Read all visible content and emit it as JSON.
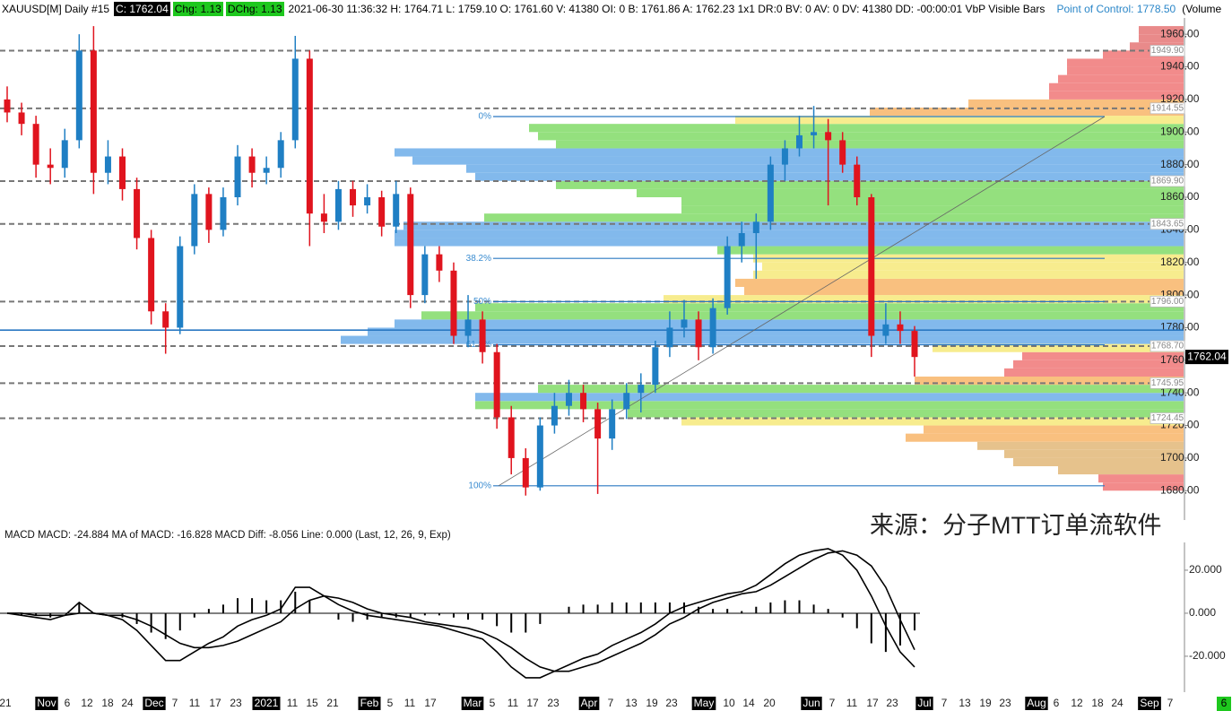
{
  "header": {
    "symbol": "XAUUSD[M]  Daily  #15",
    "close": "C: 1762.04",
    "chg": "Chg: 1.13",
    "dchg": "DChg: 1.13",
    "info": "2021-06-30 11:36:32 H: 1764.71 L: 1759.10 O: 1761.60 V: 41380 OI: 0 B: 1761.86 A: 1762.23 1x1 DR:0 BV: 0 AV: 0 DV: 41380 DD: -00:00:01 VbP Visible Bars",
    "poc": "Point of Control: 1778.50",
    "volume": "(Volume"
  },
  "watermark": "来源：分子MTT订单流软件",
  "corner_badge": "6",
  "chart_data": [
    {
      "type": "candlestick",
      "up_color": "#1f7fc4",
      "down_color": "#e0141e",
      "ylim": [
        1662,
        1970
      ],
      "yticks": [
        {
          "value": 1680,
          "label": "1680.00"
        },
        {
          "value": 1700,
          "label": "1700.00"
        },
        {
          "value": 1720,
          "label": "1720.00"
        },
        {
          "value": 1740,
          "label": "1740.00"
        },
        {
          "value": 1760,
          "label": "1760.00"
        },
        {
          "value": 1780,
          "label": "1780.00"
        },
        {
          "value": 1800,
          "label": "1800.00"
        },
        {
          "value": 1820,
          "label": "1820.00"
        },
        {
          "value": 1840,
          "label": "1840.00"
        },
        {
          "value": 1860,
          "label": "1860.00"
        },
        {
          "value": 1880,
          "label": "1880.00"
        },
        {
          "value": 1900,
          "label": "1900.00"
        },
        {
          "value": 1920,
          "label": "1920.00"
        },
        {
          "value": 1940,
          "label": "1940.00"
        },
        {
          "value": 1960,
          "label": "1960.00"
        }
      ],
      "candles": [
        [
          1920,
          1928,
          1906,
          1912
        ],
        [
          1912,
          1918,
          1898,
          1905
        ],
        [
          1905,
          1910,
          1872,
          1880
        ],
        [
          1880,
          1890,
          1868,
          1878
        ],
        [
          1878,
          1902,
          1872,
          1895
        ],
        [
          1895,
          1960,
          1890,
          1950
        ],
        [
          1950,
          1965,
          1862,
          1875
        ],
        [
          1875,
          1895,
          1868,
          1885
        ],
        [
          1885,
          1890,
          1858,
          1865
        ],
        [
          1865,
          1872,
          1828,
          1835
        ],
        [
          1835,
          1840,
          1782,
          1790
        ],
        [
          1790,
          1795,
          1764,
          1780
        ],
        [
          1780,
          1836,
          1776,
          1830
        ],
        [
          1830,
          1868,
          1825,
          1862
        ],
        [
          1862,
          1866,
          1832,
          1840
        ],
        [
          1840,
          1866,
          1836,
          1860
        ],
        [
          1860,
          1892,
          1855,
          1885
        ],
        [
          1885,
          1890,
          1866,
          1875
        ],
        [
          1875,
          1885,
          1868,
          1878
        ],
        [
          1878,
          1900,
          1872,
          1895
        ],
        [
          1895,
          1959,
          1890,
          1945
        ],
        [
          1945,
          1950,
          1830,
          1850
        ],
        [
          1850,
          1862,
          1838,
          1845
        ],
        [
          1845,
          1870,
          1840,
          1865
        ],
        [
          1865,
          1870,
          1848,
          1855
        ],
        [
          1855,
          1868,
          1850,
          1860
        ],
        [
          1860,
          1864,
          1836,
          1842
        ],
        [
          1842,
          1870,
          1838,
          1862
        ],
        [
          1862,
          1866,
          1792,
          1800
        ],
        [
          1800,
          1830,
          1795,
          1825
        ],
        [
          1825,
          1830,
          1808,
          1815
        ],
        [
          1815,
          1820,
          1770,
          1775
        ],
        [
          1775,
          1800,
          1768,
          1785
        ],
        [
          1785,
          1790,
          1758,
          1765
        ],
        [
          1765,
          1770,
          1718,
          1725
        ],
        [
          1725,
          1732,
          1690,
          1700
        ],
        [
          1700,
          1706,
          1677,
          1682
        ],
        [
          1682,
          1725,
          1680,
          1720
        ],
        [
          1720,
          1740,
          1715,
          1732
        ],
        [
          1732,
          1748,
          1726,
          1740
        ],
        [
          1740,
          1745,
          1722,
          1730
        ],
        [
          1730,
          1734,
          1678,
          1712
        ],
        [
          1712,
          1736,
          1705,
          1730
        ],
        [
          1730,
          1746,
          1724,
          1740
        ],
        [
          1740,
          1752,
          1728,
          1745
        ],
        [
          1745,
          1772,
          1740,
          1768
        ],
        [
          1768,
          1790,
          1762,
          1780
        ],
        [
          1780,
          1797,
          1774,
          1785
        ],
        [
          1785,
          1790,
          1760,
          1768
        ],
        [
          1768,
          1798,
          1764,
          1792
        ],
        [
          1792,
          1836,
          1788,
          1830
        ],
        [
          1830,
          1845,
          1820,
          1838
        ],
        [
          1838,
          1850,
          1810,
          1845
        ],
        [
          1845,
          1885,
          1840,
          1880
        ],
        [
          1880,
          1895,
          1870,
          1890
        ],
        [
          1890,
          1910,
          1885,
          1898
        ],
        [
          1898,
          1916,
          1890,
          1900
        ],
        [
          1900,
          1908,
          1855,
          1895
        ],
        [
          1895,
          1900,
          1875,
          1880
        ],
        [
          1880,
          1885,
          1855,
          1860
        ],
        [
          1860,
          1862,
          1762,
          1775
        ],
        [
          1775,
          1795,
          1770,
          1782
        ],
        [
          1782,
          1790,
          1770,
          1778
        ],
        [
          1778,
          1781,
          1750,
          1762
        ]
      ],
      "volume_profile": {
        "prices": [
          1680,
          1685,
          1690,
          1695,
          1700,
          1705,
          1710,
          1715,
          1720,
          1725,
          1730,
          1735,
          1740,
          1745,
          1750,
          1755,
          1760,
          1765,
          1770,
          1775,
          1780,
          1785,
          1790,
          1795,
          1800,
          1805,
          1810,
          1815,
          1820,
          1825,
          1830,
          1835,
          1840,
          1845,
          1850,
          1855,
          1860,
          1865,
          1870,
          1875,
          1880,
          1885,
          1890,
          1895,
          1900,
          1905,
          1910,
          1915,
          1920,
          1925,
          1930,
          1935,
          1940,
          1945,
          1950,
          1955,
          1960
        ],
        "volumes": [
          90,
          95,
          140,
          190,
          200,
          230,
          310,
          290,
          560,
          620,
          790,
          790,
          720,
          300,
          200,
          190,
          180,
          280,
          940,
          910,
          880,
          850,
          790,
          580,
          490,
          500,
          480,
          470,
          480,
          520,
          880,
          880,
          870,
          780,
          560,
          560,
          610,
          700,
          790,
          800,
          860,
          880,
          700,
          720,
          730,
          500,
          350,
          240,
          150,
          150,
          140,
          130,
          130,
          90,
          60,
          50,
          50
        ],
        "colors": [
          "#f28b8b",
          "#f28b8b",
          "#e6c28c",
          "#e6c28c",
          "#e6c28c",
          "#e6c28c",
          "#f9c07f",
          "#f9c07f",
          "#f7ec8e",
          "#94e07e",
          "#94e07e",
          "#82b9ec",
          "#94e07e",
          "#f9c07f",
          "#f28b8b",
          "#f28b8b",
          "#f28b8b",
          "#f7ec8e",
          "#82b9ec",
          "#82b9ec",
          "#82b9ec",
          "#94e07e",
          "#94e07e",
          "#f7ec8e",
          "#f9c07f",
          "#f9c07f",
          "#f7ec8e",
          "#f7ec8e",
          "#f7ec8e",
          "#94e07e",
          "#82b9ec",
          "#82b9ec",
          "#82b9ec",
          "#94e07e",
          "#94e07e",
          "#94e07e",
          "#94e07e",
          "#94e07e",
          "#82b9ec",
          "#82b9ec",
          "#82b9ec",
          "#82b9ec",
          "#94e07e",
          "#94e07e",
          "#94e07e",
          "#f7ec8e",
          "#f9c07f",
          "#f9c07f",
          "#f28b8b",
          "#f28b8b",
          "#f28b8b",
          "#f28b8b",
          "#f28b8b",
          "#f28b8b",
          "#e98a8a",
          "#e98a8a",
          "#e98a8a"
        ]
      },
      "levels": [
        {
          "value": 1949.9,
          "label": "1949.90"
        },
        1914.55,
        {
          "value": 1869.9,
          "label": "1869.90"
        },
        1843.65,
        {
          "value": 1796,
          "label": "1796.00"
        },
        {
          "value": 1768.7,
          "label": "1768.70"
        },
        1745.95,
        1724.45
      ],
      "poc": 1778.5,
      "last_price": 1762.04,
      "fib_levels": [
        {
          "name": "0%",
          "price": 1909.5
        },
        {
          "name": "38.2%",
          "price": 1822.5
        },
        {
          "name": "50%",
          "price": 1796
        },
        {
          "name": "61.8%",
          "price": 1769.5
        },
        {
          "name": "100%",
          "price": 1683
        }
      ]
    },
    {
      "type": "macd",
      "title": "MACD  MACD: -24.884  MA of MACD: -16.828  MACD Diff: -8.056  Line: 0.000   (Last, 12, 26, 9, Exp)",
      "ylim": [
        -36.7,
        32.9
      ],
      "yticks": [
        {
          "value": 20,
          "label": "20.000"
        },
        {
          "value": 0,
          "label": "0.000"
        },
        {
          "value": -20,
          "label": "-20.000"
        }
      ],
      "macd": [
        0,
        -1,
        -2,
        -3,
        -1,
        5,
        0,
        -1,
        -3,
        -8,
        -15,
        -22,
        -22,
        -18,
        -14,
        -11,
        -6,
        -3,
        -1,
        2,
        12,
        12,
        8,
        4,
        1,
        -1,
        -2,
        -3,
        -4,
        -5,
        -6,
        -8,
        -10,
        -12,
        -18,
        -25,
        -30,
        -30,
        -27,
        -24,
        -21,
        -19,
        -15,
        -12,
        -9,
        -5,
        0,
        3,
        5,
        7,
        9,
        10,
        13,
        18,
        23,
        27,
        29,
        30,
        27,
        20,
        8,
        -6,
        -18,
        -25
      ],
      "signal": [
        0,
        0,
        -1,
        -1,
        -1,
        0,
        0,
        -1,
        -1,
        -3,
        -6,
        -10,
        -14,
        -16,
        -16,
        -15,
        -13,
        -10,
        -7,
        -4,
        2,
        6,
        8,
        7,
        5,
        2,
        0,
        -1,
        -2,
        -4,
        -5,
        -6,
        -7,
        -9,
        -12,
        -16,
        -21,
        -25,
        -27,
        -27,
        -25,
        -23,
        -20,
        -17,
        -14,
        -10,
        -5,
        -2,
        2,
        5,
        7,
        9,
        10,
        13,
        17,
        21,
        25,
        28,
        29,
        27,
        22,
        12,
        -3,
        -17
      ],
      "histogram": [
        0,
        -1,
        -1,
        -2,
        0,
        5,
        0,
        0,
        -2,
        -5,
        -9,
        -12,
        -8,
        -2,
        2,
        4,
        7,
        7,
        6,
        6,
        10,
        6,
        0,
        -3,
        -4,
        -3,
        -2,
        -2,
        -2,
        -1,
        -1,
        -2,
        -3,
        -3,
        -6,
        -9,
        -9,
        -5,
        0,
        3,
        4,
        4,
        5,
        5,
        5,
        5,
        5,
        5,
        3,
        2,
        2,
        1,
        3,
        5,
        6,
        6,
        4,
        2,
        -2,
        -7,
        -14,
        -18,
        -15,
        -8
      ],
      "x_labels": [
        "21",
        "Nov",
        "6",
        "12",
        "18",
        "24",
        "Dec",
        "7",
        "11",
        "17",
        "23",
        "2021",
        "11",
        "15",
        "21",
        "Feb",
        "5",
        "11",
        "17",
        "Mar",
        "5",
        "11",
        "17",
        "23",
        "Apr",
        "7",
        "13",
        "19",
        "23",
        "May",
        "10",
        "14",
        "20",
        "Jun",
        "7",
        "11",
        "17",
        "23",
        "Jul",
        "7",
        "13",
        "19",
        "23",
        "Aug",
        "6",
        "12",
        "18",
        "24",
        "Sep",
        "7"
      ]
    }
  ]
}
